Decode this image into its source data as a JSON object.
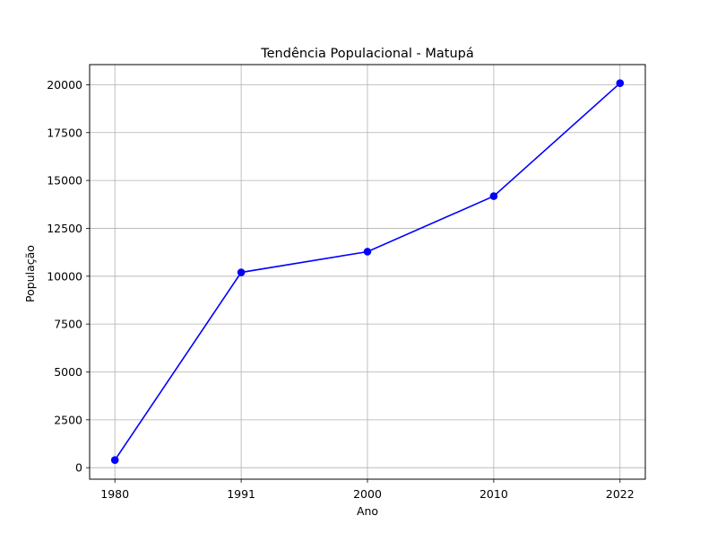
{
  "chart_data": {
    "type": "line",
    "title": "Tendência Populacional - Matupá",
    "xlabel": "Ano",
    "ylabel": "População",
    "categories": [
      "1980",
      "1991",
      "2000",
      "2010",
      "2022"
    ],
    "series": [
      {
        "values": [
          400,
          10200,
          11280,
          14180,
          20080
        ]
      }
    ],
    "ylim": [
      -600,
      21050
    ],
    "yticks": [
      0,
      2500,
      5000,
      7500,
      10000,
      12500,
      15000,
      17500,
      20000
    ],
    "ytick_labels": [
      "0",
      "2500",
      "5000",
      "7500",
      "10000",
      "12500",
      "15000",
      "17500",
      "20000"
    ],
    "grid": true,
    "line_color": "#0000ff",
    "marker": "circle"
  }
}
